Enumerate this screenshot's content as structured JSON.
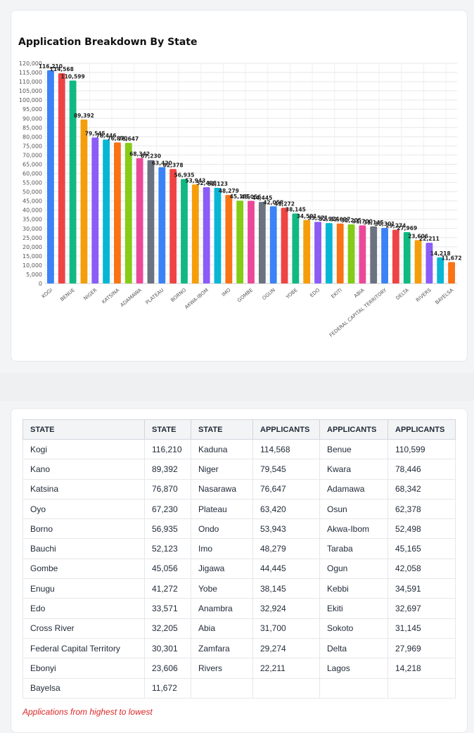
{
  "chart_data": {
    "type": "bar",
    "title": "Application Breakdown By State",
    "categories": [
      "Kogi",
      "Kaduna",
      "Benue",
      "Kano",
      "Niger",
      "Kwara",
      "Katsina",
      "Nasarawa",
      "Adamawa",
      "Oyo",
      "Plateau",
      "Osun",
      "Borno",
      "Ondo",
      "Akwa-Ibom",
      "Bauchi",
      "Imo",
      "Taraba",
      "Gombe",
      "Jigawa",
      "Ogun",
      "Enugu",
      "Yobe",
      "Kebbi",
      "Edo",
      "Anambra",
      "Ekiti",
      "Cross River",
      "Abia",
      "Sokoto",
      "Federal Capital Territory",
      "Zamfara",
      "Delta",
      "Ebonyi",
      "Rivers",
      "Lagos",
      "Bayelsa"
    ],
    "x_tick_labels": [
      "KOGI",
      "BENUE",
      "NIGER",
      "KATSINA",
      "ADAMAWA",
      "PLATEAU",
      "BORNO",
      "AKWA-IBOM",
      "IMO",
      "GOMBE",
      "OGUN",
      "YOBE",
      "EDO",
      "EKITI",
      "ABIA",
      "FEDERAL CAPITAL TERRITORY",
      "DELTA",
      "RIVERS",
      "BAYELSA"
    ],
    "values": [
      116210,
      114568,
      110599,
      89392,
      79545,
      78446,
      76870,
      76647,
      68342,
      67230,
      63420,
      62378,
      56935,
      53943,
      52498,
      52123,
      48279,
      45165,
      45056,
      44445,
      42058,
      41272,
      38145,
      34591,
      33571,
      32924,
      32697,
      32205,
      31700,
      31145,
      30301,
      29274,
      27969,
      23606,
      22211,
      14218,
      11672
    ],
    "data_labels": [
      "116,210",
      "114,568",
      "110,599",
      "89,392",
      "79,545",
      "78,446",
      "76,870",
      "76,647",
      "68,342",
      "67,230",
      "63,420",
      "62,378",
      "56,935",
      "53,943",
      "52,498",
      "52,123",
      "48,279",
      "45,165",
      "45,056",
      "44,445",
      "42,058",
      "41,272",
      "38,145",
      "34,591",
      "33,571",
      "32,924",
      "32,697",
      "32,205",
      "31,700",
      "31,145",
      "30,301",
      "29,274",
      "27,969",
      "23,606",
      "22,211",
      "14,218",
      "11,672"
    ],
    "y_ticks": [
      "0",
      "5,000",
      "10,000",
      "15,000",
      "20,000",
      "25,000",
      "30,000",
      "35,000",
      "40,000",
      "45,000",
      "50,000",
      "55,000",
      "60,000",
      "65,000",
      "70,000",
      "75,000",
      "80,000",
      "85,000",
      "90,000",
      "95,000",
      "100,000",
      "105,000",
      "110,000",
      "115,000",
      "120,000"
    ],
    "ylim": [
      0,
      120000
    ],
    "grid": true,
    "legend": "none",
    "colors": [
      "#3b82f6",
      "#ef4444",
      "#10b981",
      "#f59e0b",
      "#8b5cf6",
      "#06b6d4",
      "#f97316",
      "#84cc16",
      "#ec4899",
      "#6b7280"
    ]
  },
  "table": {
    "headers": [
      "STATE",
      "STATE",
      "STATE",
      "APPLICANTS",
      "APPLICANTS",
      "APPLICANTS"
    ],
    "rows": [
      [
        "Kogi",
        "116,210",
        "Kaduna",
        "114,568",
        "Benue",
        "110,599"
      ],
      [
        "Kano",
        "89,392",
        "Niger",
        "79,545",
        "Kwara",
        "78,446"
      ],
      [
        "Katsina",
        "76,870",
        "Nasarawa",
        "76,647",
        "Adamawa",
        "68,342"
      ],
      [
        "Oyo",
        "67,230",
        "Plateau",
        "63,420",
        "Osun",
        "62,378"
      ],
      [
        "Borno",
        "56,935",
        "Ondo",
        "53,943",
        "Akwa-Ibom",
        "52,498"
      ],
      [
        "Bauchi",
        "52,123",
        "Imo",
        "48,279",
        "Taraba",
        "45,165"
      ],
      [
        "Gombe",
        "45,056",
        "Jigawa",
        "44,445",
        "Ogun",
        "42,058"
      ],
      [
        "Enugu",
        "41,272",
        "Yobe",
        "38,145",
        "Kebbi",
        "34,591"
      ],
      [
        "Edo",
        "33,571",
        "Anambra",
        "32,924",
        "Ekiti",
        "32,697"
      ],
      [
        "Cross River",
        "32,205",
        "Abia",
        "31,700",
        "Sokoto",
        "31,145"
      ],
      [
        "Federal Capital Territory",
        "30,301",
        "Zamfara",
        "29,274",
        "Delta",
        "27,969"
      ],
      [
        "Ebonyi",
        "23,606",
        "Rivers",
        "22,211",
        "Lagos",
        "14,218"
      ],
      [
        "Bayelsa",
        "11,672",
        "",
        "",
        "",
        ""
      ]
    ]
  },
  "note": "Applications from highest to lowest"
}
